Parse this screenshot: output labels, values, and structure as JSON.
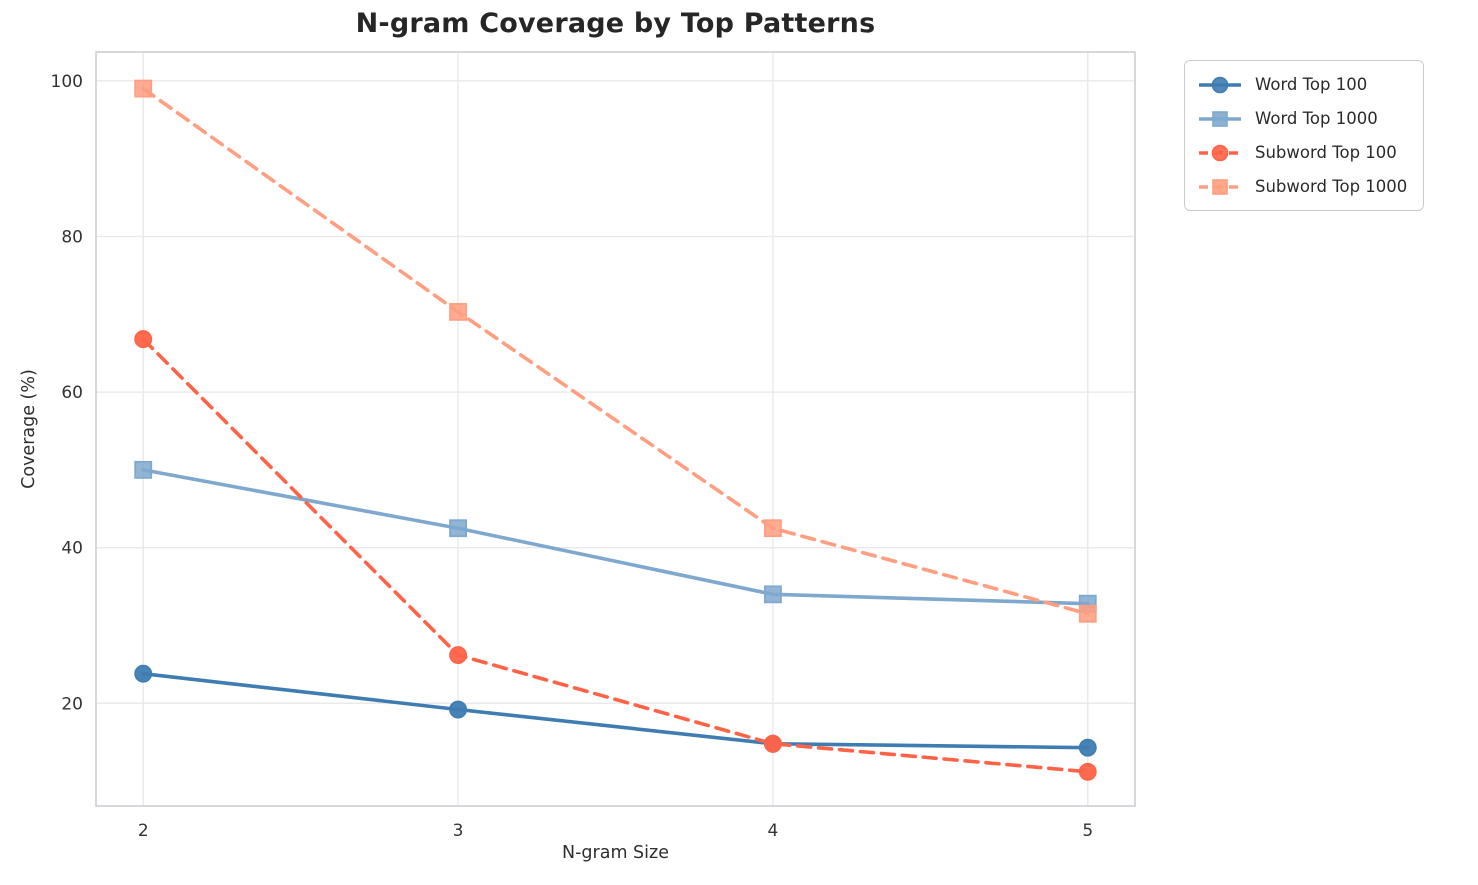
{
  "chart_data": {
    "type": "line",
    "title": "N-gram Coverage by Top Patterns",
    "xlabel": "N-gram Size",
    "ylabel": "Coverage (%)",
    "x": [
      2,
      3,
      4,
      5
    ],
    "xticks": [
      "2",
      "3",
      "4",
      "5"
    ],
    "yticks": [
      "20",
      "40",
      "60",
      "80",
      "100"
    ],
    "ytick_values": [
      20,
      40,
      60,
      80,
      100
    ],
    "xlim": [
      1.85,
      5.15
    ],
    "ylim": [
      6.8,
      103.7
    ],
    "grid": true,
    "legend_position": "outside-right",
    "series": [
      {
        "name": "Word Top 100",
        "color": "#3E7CB1",
        "linestyle": "solid",
        "marker": "circle",
        "values": [
          23.8,
          19.2,
          14.8,
          14.3
        ]
      },
      {
        "name": "Word Top 1000",
        "color": "#7FA8CE",
        "linestyle": "solid",
        "marker": "square",
        "values": [
          50.0,
          42.5,
          34.0,
          32.8
        ]
      },
      {
        "name": "Subword Top 100",
        "color": "#FF6347",
        "linestyle": "dashed",
        "marker": "circle",
        "values": [
          66.8,
          26.2,
          14.8,
          11.2
        ]
      },
      {
        "name": "Subword Top 1000",
        "color": "#FF9E80",
        "linestyle": "dashed",
        "marker": "square",
        "values": [
          99.0,
          70.3,
          42.5,
          31.5
        ]
      }
    ],
    "colors": {
      "grid": "#e9e9ec",
      "spine": "#cfcfd4",
      "title_text": "#262626",
      "tick_text": "#333333"
    }
  }
}
